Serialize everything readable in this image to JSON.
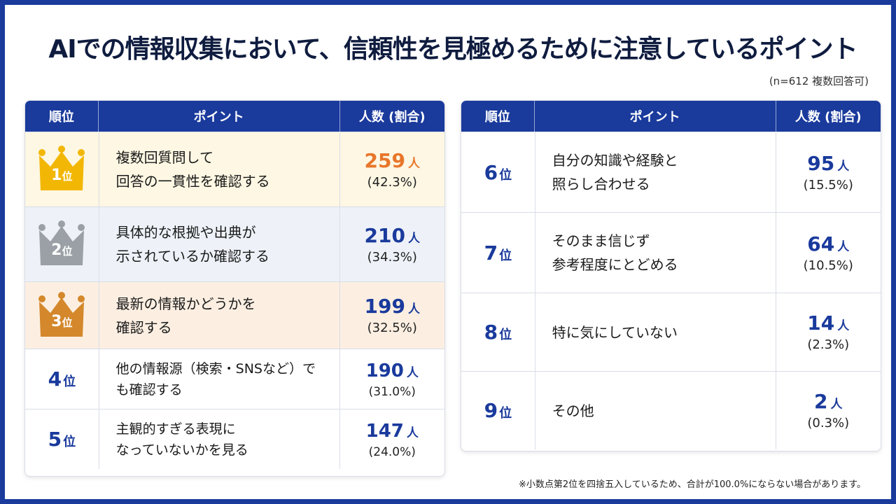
{
  "title": "AIでの情報収集において、信頼性を見極めるために注意しているポイント",
  "sample_note": "(n=612 複数回答可)",
  "headers": {
    "rank": "順位",
    "point": "ポイント",
    "count": "人数 (割合)"
  },
  "colors": {
    "primary": "#1a3a9c",
    "gold": "#f2b705",
    "silver": "#9aa0a6",
    "bronze": "#d4882b",
    "accent": "#e8762a"
  },
  "left_rows": [
    {
      "rank": "1",
      "rank_suffix": "位",
      "crown": "gold-crown-icon",
      "point": "複数回質問して\n回答の一貫性を確認する",
      "count": "259",
      "unit": "人",
      "pct": "(42.3%)"
    },
    {
      "rank": "2",
      "rank_suffix": "位",
      "crown": "silver-crown-icon",
      "point": "具体的な根拠や出典が\n示されているか確認する",
      "count": "210",
      "unit": "人",
      "pct": "(34.3%)"
    },
    {
      "rank": "3",
      "rank_suffix": "位",
      "crown": "bronze-crown-icon",
      "point": "最新の情報かどうかを\n確認する",
      "count": "199",
      "unit": "人",
      "pct": "(32.5%)"
    },
    {
      "rank": "4",
      "rank_suffix": "位",
      "point": "他の情報源（検索・SNSなど）で\nも確認する",
      "count": "190",
      "unit": "人",
      "pct": "(31.0%)"
    },
    {
      "rank": "5",
      "rank_suffix": "位",
      "point": "主観的すぎる表現に\nなっていないかを見る",
      "count": "147",
      "unit": "人",
      "pct": "(24.0%)"
    }
  ],
  "right_rows": [
    {
      "rank": "6",
      "rank_suffix": "位",
      "point": "自分の知識や経験と\n照らし合わせる",
      "count": "95",
      "unit": "人",
      "pct": "(15.5%)"
    },
    {
      "rank": "7",
      "rank_suffix": "位",
      "point": "そのまま信じず\n参考程度にとどめる",
      "count": "64",
      "unit": "人",
      "pct": "(10.5%)"
    },
    {
      "rank": "8",
      "rank_suffix": "位",
      "point": "特に気にしていない",
      "count": "14",
      "unit": "人",
      "pct": "(2.3%)"
    },
    {
      "rank": "9",
      "rank_suffix": "位",
      "point": "その他",
      "count": "2",
      "unit": "人",
      "pct": "(0.3%)"
    }
  ],
  "footnote": "※小数点第2位を四捨五入しているため、合計が100.0%にならない場合があります。"
}
